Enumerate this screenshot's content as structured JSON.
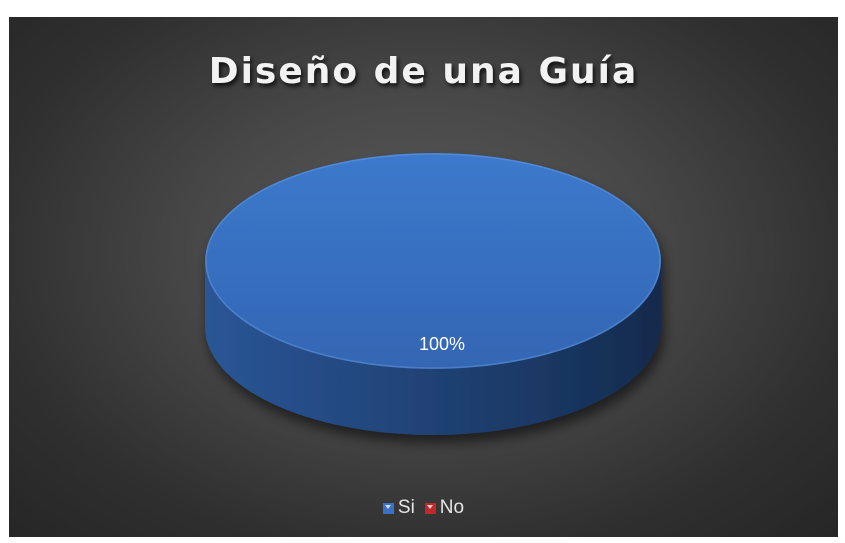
{
  "chart_data": {
    "type": "pie",
    "title": "Diseño de una Guía",
    "categories": [
      "Si",
      "No"
    ],
    "values": [
      100,
      0
    ],
    "data_labels": [
      "100%"
    ],
    "colors": {
      "Si": "#3a71c1",
      "No": "#c0292b"
    },
    "legend_position": "bottom",
    "style": "3d",
    "background": "#3f3f3f"
  }
}
